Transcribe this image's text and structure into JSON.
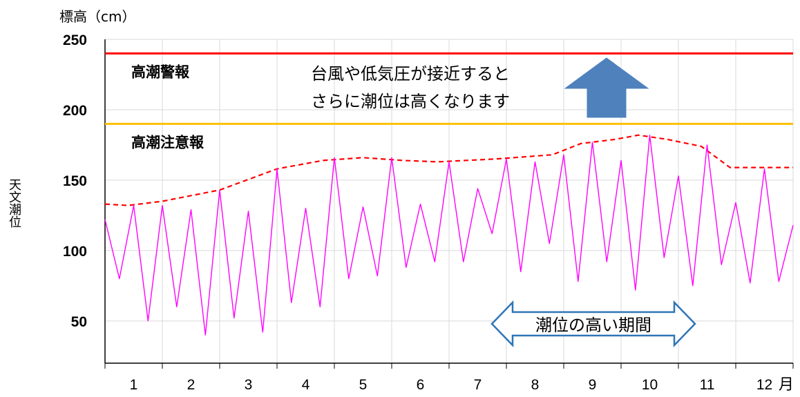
{
  "chart_data": {
    "type": "line",
    "ylabel_top": "標高（cm）",
    "ylabel_side": "天文潮位",
    "ylim": [
      20,
      250
    ],
    "yticks": [
      50,
      100,
      150,
      200,
      250
    ],
    "x_range": [
      0.5,
      12.5
    ],
    "xticks": [
      1,
      2,
      3,
      4,
      5,
      6,
      7,
      8,
      9,
      10,
      11,
      12
    ],
    "x_unit": "月",
    "grid": true,
    "reference_lines": [
      {
        "label": "高潮警報",
        "value": 240,
        "color": "#ff0000"
      },
      {
        "label": "高潮注意報",
        "value": 190,
        "color": "#ffc000"
      }
    ],
    "series": [
      {
        "kind": "envelope",
        "color": "#ff0000",
        "style": "dashed",
        "x": [
          0.5,
          0.9,
          1.5,
          2.5,
          3.5,
          4.3,
          5.0,
          5.7,
          6.3,
          7.3,
          8.3,
          8.8,
          9.4,
          9.8,
          10.3,
          10.9,
          11.4,
          12.0,
          12.5
        ],
        "values": [
          133,
          132,
          135,
          143,
          158,
          164,
          166,
          164,
          163,
          165,
          168,
          176,
          179,
          182,
          179,
          174,
          159,
          159,
          159
        ]
      },
      {
        "kind": "astronomical-tide",
        "color": "#ff00ff",
        "style": "solid",
        "x": [
          0.5,
          0.75,
          1.0,
          1.25,
          1.5,
          1.75,
          2.0,
          2.25,
          2.5,
          2.75,
          3.0,
          3.25,
          3.5,
          3.75,
          4.0,
          4.25,
          4.5,
          4.75,
          5.0,
          5.25,
          5.5,
          5.75,
          6.0,
          6.25,
          6.5,
          6.75,
          7.0,
          7.25,
          7.5,
          7.75,
          8.0,
          8.25,
          8.5,
          8.75,
          9.0,
          9.25,
          9.5,
          9.75,
          10.0,
          10.25,
          10.5,
          10.75,
          11.0,
          11.25,
          11.5,
          11.75,
          12.0,
          12.25,
          12.5
        ],
        "values": [
          122,
          80,
          132,
          50,
          132,
          60,
          129,
          40,
          143,
          52,
          128,
          42,
          158,
          63,
          130,
          60,
          166,
          80,
          131,
          82,
          166,
          88,
          133,
          92,
          163,
          92,
          144,
          112,
          165,
          85,
          163,
          105,
          168,
          78,
          177,
          92,
          164,
          72,
          182,
          95,
          153,
          75,
          175,
          90,
          134,
          77,
          158,
          78,
          118
        ]
      }
    ],
    "annotations": {
      "note_line1": "台風や低気圧が接近すると",
      "note_line2": "さらに潮位は高くなります",
      "period_label": "潮位の高い期間",
      "period_range": [
        7.3,
        10.8
      ]
    }
  }
}
